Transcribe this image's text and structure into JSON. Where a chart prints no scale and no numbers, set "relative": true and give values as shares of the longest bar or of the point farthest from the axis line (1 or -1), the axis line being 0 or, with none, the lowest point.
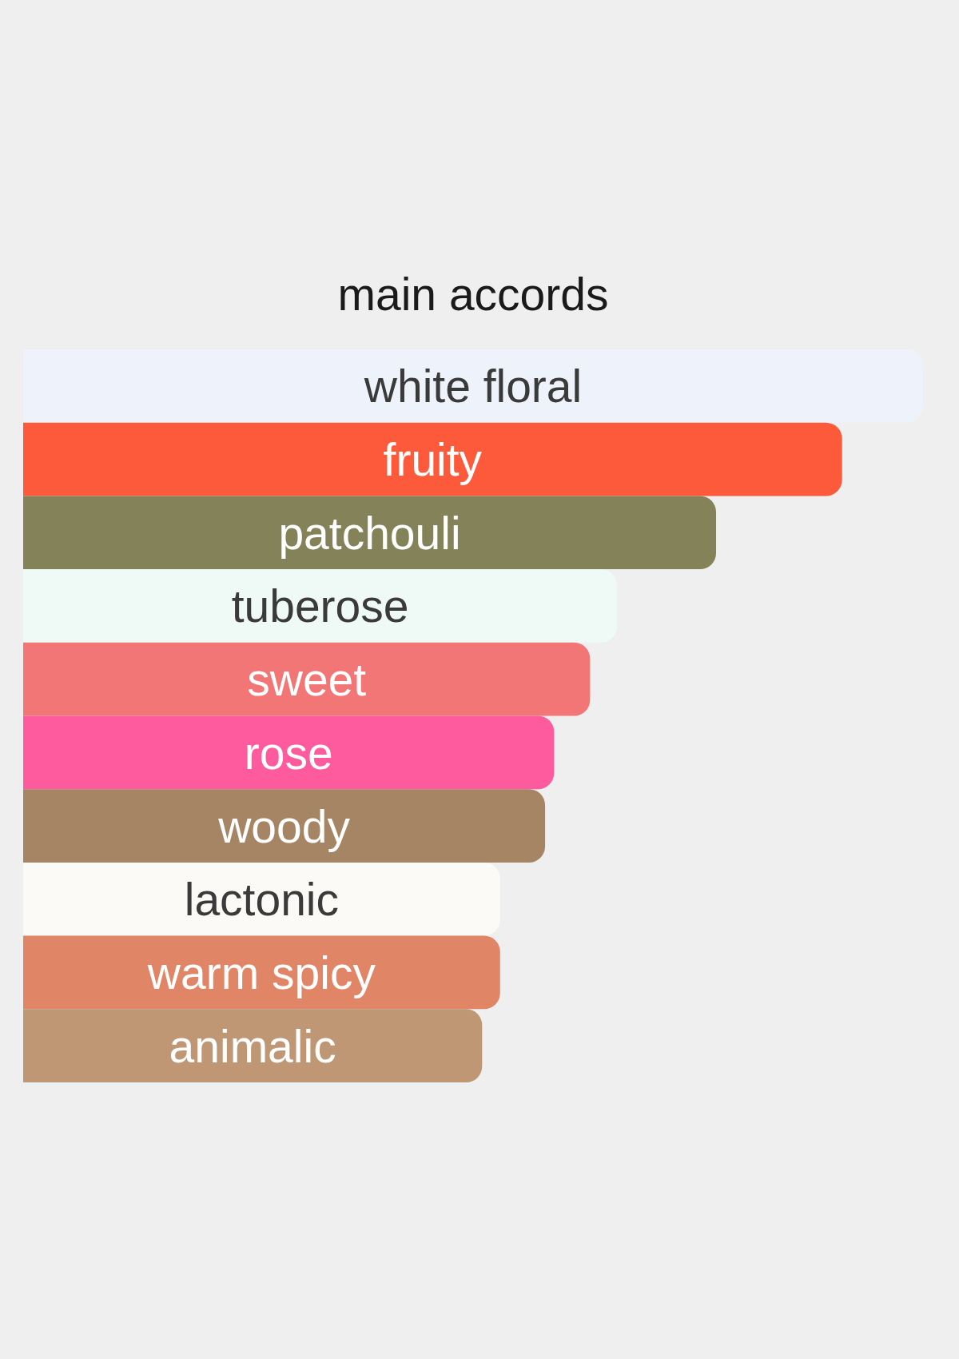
{
  "chart_data": {
    "type": "bar",
    "orientation": "horizontal",
    "relative": true,
    "title": "main accords",
    "categories": [
      "white floral",
      "fruity",
      "patchouli",
      "tuberose",
      "sweet",
      "rose",
      "woody",
      "lactonic",
      "warm spicy",
      "animalic"
    ],
    "values": [
      1,
      0.91,
      0.77,
      0.66,
      0.63,
      0.59,
      0.58,
      0.53,
      0.53,
      0.51
    ],
    "colors": [
      "#edf2fb",
      "#fc5a3a",
      "#848258",
      "#eff9f5",
      "#f27676",
      "#fe5a9e",
      "#a68565",
      "#fbfaf6",
      "#e08565",
      "#bf9774"
    ]
  }
}
